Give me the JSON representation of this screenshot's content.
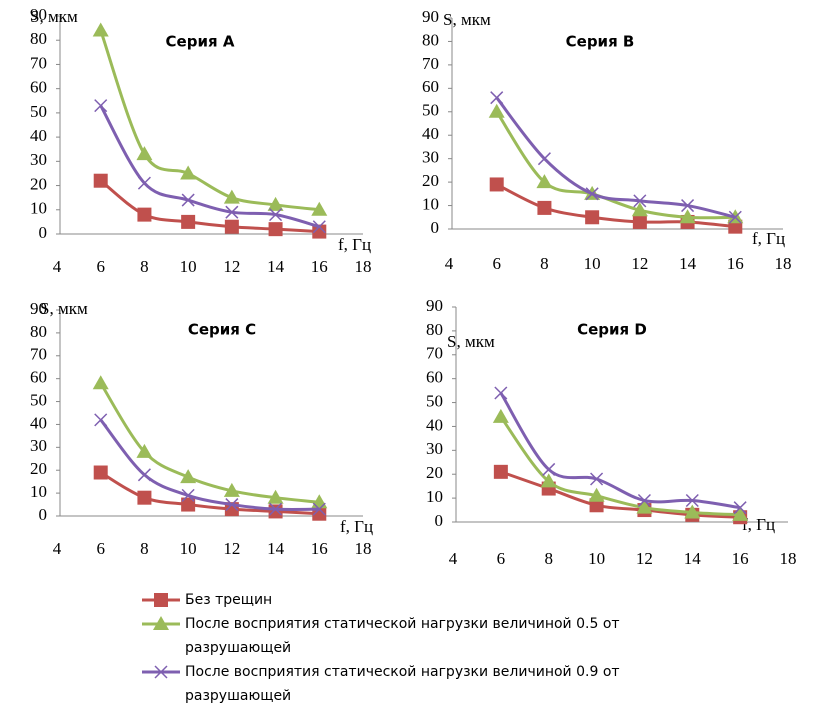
{
  "legend": [
    {
      "name": "Без трещин",
      "color": "#c0504d",
      "marker": "square"
    },
    {
      "name": "После восприятия статической нагрузки величиной 0.5 от разрушающей",
      "color": "#9bbb59",
      "marker": "triangle"
    },
    {
      "name": "После восприятия статической нагрузки величиной 0.9 от разрушающей",
      "color": "#7e5fb0",
      "marker": "cross"
    }
  ],
  "chart_data": [
    {
      "type": "line",
      "title": "Серия A",
      "ylabel": "S, мкм",
      "xlabel": "f, Гц",
      "x": [
        6,
        8,
        10,
        12,
        14,
        16
      ],
      "xlim": [
        4,
        18
      ],
      "xticks": [
        4,
        6,
        8,
        10,
        12,
        14,
        16,
        18
      ],
      "ylim": [
        0,
        90
      ],
      "yticks": [
        0,
        10,
        20,
        30,
        40,
        50,
        60,
        70,
        80,
        90
      ],
      "series": [
        {
          "values": [
            22,
            8,
            5,
            3,
            2,
            1
          ]
        },
        {
          "values": [
            84,
            33,
            25,
            15,
            12,
            10
          ]
        },
        {
          "values": [
            53,
            21,
            14,
            9,
            8,
            3
          ]
        }
      ]
    },
    {
      "type": "line",
      "title": "Серия B",
      "ylabel": "S, мкм",
      "xlabel": "f, Гц",
      "x": [
        6,
        8,
        10,
        12,
        14,
        16
      ],
      "xlim": [
        4,
        18
      ],
      "xticks": [
        4,
        6,
        8,
        10,
        12,
        14,
        16,
        18
      ],
      "ylim": [
        0,
        90
      ],
      "yticks": [
        0,
        10,
        20,
        30,
        40,
        50,
        60,
        70,
        80,
        90
      ],
      "series": [
        {
          "values": [
            19,
            9,
            5,
            3,
            3,
            1
          ]
        },
        {
          "values": [
            50,
            20,
            15,
            8,
            5,
            5
          ]
        },
        {
          "values": [
            56,
            30,
            15,
            12,
            10,
            5
          ]
        }
      ]
    },
    {
      "type": "line",
      "title": "Серия C",
      "ylabel": "S, мкм",
      "xlabel": "f, Гц",
      "x": [
        6,
        8,
        10,
        12,
        14,
        16
      ],
      "xlim": [
        4,
        18
      ],
      "xticks": [
        4,
        6,
        8,
        10,
        12,
        14,
        16,
        18
      ],
      "ylim": [
        0,
        90
      ],
      "yticks": [
        0,
        10,
        20,
        30,
        40,
        50,
        60,
        70,
        80,
        90
      ],
      "series": [
        {
          "values": [
            19,
            8,
            5,
            3,
            2,
            1
          ]
        },
        {
          "values": [
            58,
            28,
            17,
            11,
            8,
            6
          ]
        },
        {
          "values": [
            42,
            18,
            9,
            5,
            3,
            3
          ]
        }
      ]
    },
    {
      "type": "line",
      "title": "Серия D",
      "ylabel": "S, мкм",
      "xlabel": "f, Гц",
      "x": [
        6,
        8,
        10,
        12,
        14,
        16
      ],
      "xlim": [
        4,
        18
      ],
      "xticks": [
        4,
        6,
        8,
        10,
        12,
        14,
        16,
        18
      ],
      "ylim": [
        0,
        90
      ],
      "yticks": [
        0,
        10,
        20,
        30,
        40,
        50,
        60,
        70,
        80,
        90
      ],
      "series": [
        {
          "values": [
            21,
            14,
            7,
            5,
            3,
            2
          ]
        },
        {
          "values": [
            44,
            17,
            11,
            6,
            4,
            3
          ]
        },
        {
          "values": [
            54,
            22,
            18,
            9,
            9,
            6
          ]
        }
      ]
    }
  ]
}
